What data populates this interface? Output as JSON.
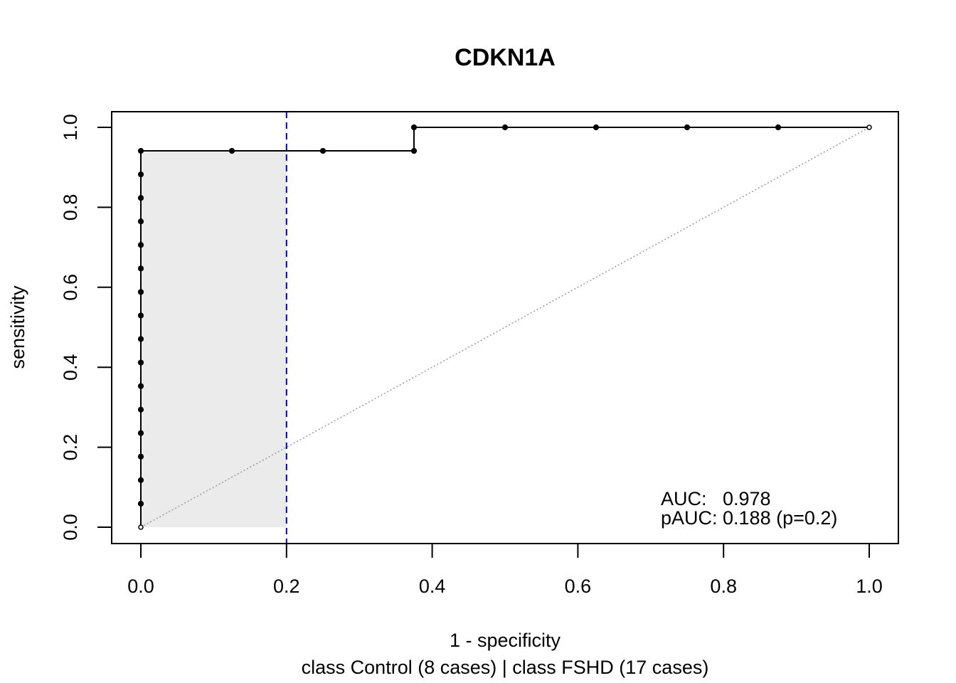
{
  "chart_data": {
    "type": "line",
    "title": "CDKN1A",
    "xlabel": "1 - specificity",
    "xlabel_sub": "class Control (8 cases) | class FSHD (17 cases)",
    "ylabel": "sensitivity",
    "xlim": [
      0,
      1
    ],
    "ylim": [
      0,
      1
    ],
    "xticks": [
      "0.0",
      "0.2",
      "0.4",
      "0.6",
      "0.8",
      "1.0"
    ],
    "yticks": [
      "0.0",
      "0.2",
      "0.4",
      "0.6",
      "0.8",
      "1.0"
    ],
    "grid": false,
    "series": [
      {
        "x": [
          0,
          0,
          0,
          0,
          0,
          0,
          0,
          0,
          0,
          0,
          0,
          0,
          0,
          0,
          0,
          0,
          0,
          0.125,
          0.25,
          0.375,
          0.375,
          0.5,
          0.625,
          0.75,
          0.875,
          1.0
        ],
        "y": [
          0,
          0.0588,
          0.1176,
          0.1765,
          0.2353,
          0.2941,
          0.3529,
          0.4118,
          0.4706,
          0.5294,
          0.5882,
          0.6471,
          0.7059,
          0.7647,
          0.8235,
          0.8824,
          0.9412,
          0.9412,
          0.9412,
          0.9412,
          1.0,
          1.0,
          1.0,
          1.0,
          1.0,
          1.0
        ]
      }
    ],
    "reference_line": {
      "x": [
        0,
        1
      ],
      "y": [
        0,
        1
      ],
      "style": "dotted",
      "color": "#999999"
    },
    "partial_region": {
      "x_from": 0,
      "x_to": 0.2,
      "color": "#ebebeb"
    },
    "cutoff_line": {
      "x": 0.2,
      "style": "dashed",
      "color": "#0000aa"
    },
    "annotations": {
      "auc": "AUC:   0.978",
      "pauc": "pAUC: 0.188 (p=0.2)"
    }
  }
}
